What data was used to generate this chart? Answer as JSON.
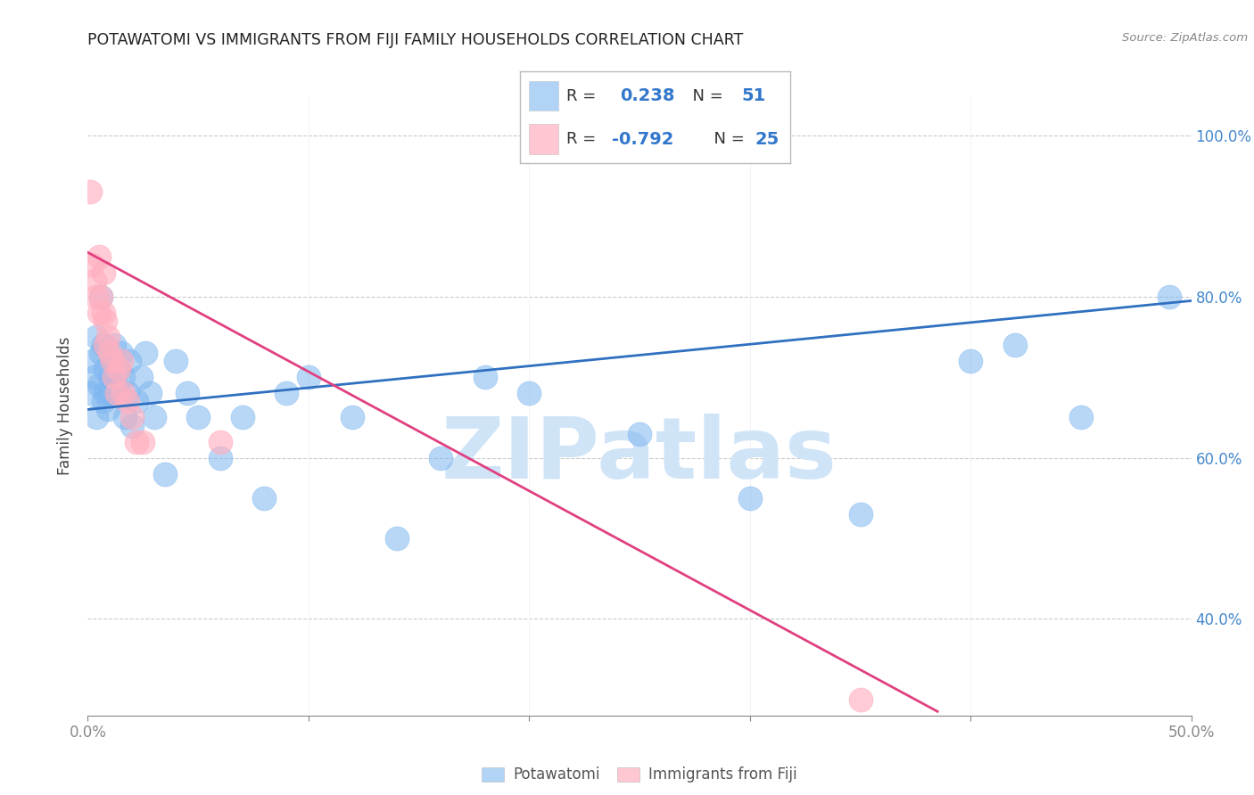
{
  "title": "POTAWATOMI VS IMMIGRANTS FROM FIJI FAMILY HOUSEHOLDS CORRELATION CHART",
  "source": "Source: ZipAtlas.com",
  "ylabel": "Family Households",
  "xlim": [
    0.0,
    0.5
  ],
  "ylim": [
    0.28,
    1.05
  ],
  "xticks": [
    0.0,
    0.1,
    0.2,
    0.3,
    0.4,
    0.5
  ],
  "yticks": [
    0.4,
    0.6,
    0.8,
    1.0
  ],
  "xtick_labels_bottom": [
    "0.0%",
    "",
    "",
    "",
    "",
    "50.0%"
  ],
  "ytick_labels": [
    "40.0%",
    "60.0%",
    "80.0%",
    "100.0%"
  ],
  "blue_R": 0.238,
  "blue_N": 51,
  "pink_R": -0.792,
  "pink_N": 25,
  "blue_color": "#7EB6F0",
  "pink_color": "#FFB0C0",
  "trend_blue_color": "#3070C0",
  "trend_pink_color": "#E04080",
  "watermark": "ZIPatlas",
  "watermark_color": "#D0E4F8",
  "legend_label_blue": "Potawatomi",
  "legend_label_pink": "Immigrants from Fiji",
  "blue_points_x": [
    0.001,
    0.002,
    0.003,
    0.004,
    0.004,
    0.005,
    0.006,
    0.006,
    0.007,
    0.007,
    0.008,
    0.008,
    0.009,
    0.01,
    0.01,
    0.011,
    0.012,
    0.013,
    0.014,
    0.015,
    0.016,
    0.017,
    0.018,
    0.019,
    0.02,
    0.022,
    0.024,
    0.026,
    0.028,
    0.03,
    0.035,
    0.04,
    0.045,
    0.05,
    0.06,
    0.07,
    0.08,
    0.09,
    0.1,
    0.12,
    0.14,
    0.16,
    0.18,
    0.2,
    0.25,
    0.3,
    0.35,
    0.4,
    0.42,
    0.45,
    0.49
  ],
  "blue_points_y": [
    0.68,
    0.72,
    0.7,
    0.65,
    0.75,
    0.69,
    0.73,
    0.8,
    0.67,
    0.74,
    0.71,
    0.68,
    0.66,
    0.7,
    0.68,
    0.72,
    0.74,
    0.69,
    0.71,
    0.73,
    0.7,
    0.65,
    0.68,
    0.72,
    0.64,
    0.67,
    0.7,
    0.73,
    0.68,
    0.65,
    0.58,
    0.72,
    0.68,
    0.65,
    0.6,
    0.65,
    0.55,
    0.68,
    0.7,
    0.65,
    0.5,
    0.6,
    0.7,
    0.68,
    0.63,
    0.55,
    0.53,
    0.72,
    0.74,
    0.65,
    0.8
  ],
  "pink_points_x": [
    0.001,
    0.002,
    0.003,
    0.004,
    0.005,
    0.005,
    0.006,
    0.007,
    0.007,
    0.008,
    0.008,
    0.009,
    0.01,
    0.011,
    0.012,
    0.013,
    0.014,
    0.015,
    0.016,
    0.018,
    0.02,
    0.022,
    0.025,
    0.06,
    0.35
  ],
  "pink_points_y": [
    0.93,
    0.84,
    0.82,
    0.8,
    0.78,
    0.85,
    0.8,
    0.78,
    0.83,
    0.74,
    0.77,
    0.75,
    0.73,
    0.72,
    0.7,
    0.68,
    0.71,
    0.72,
    0.68,
    0.67,
    0.65,
    0.62,
    0.62,
    0.62,
    0.3
  ],
  "blue_trend_x": [
    0.0,
    0.5
  ],
  "blue_trend_y": [
    0.66,
    0.795
  ],
  "pink_trend_x": [
    0.0,
    0.385
  ],
  "pink_trend_y": [
    0.855,
    0.285
  ]
}
